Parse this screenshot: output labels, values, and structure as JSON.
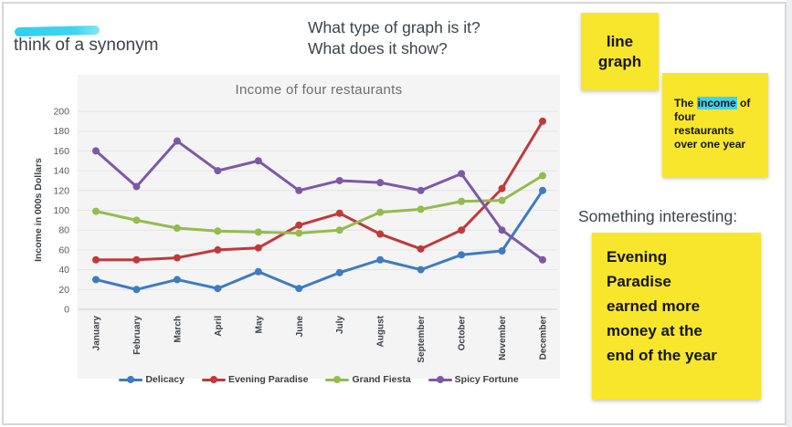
{
  "page": {
    "prompt_synonym": "think of a synonym",
    "question_line1": "What type of graph is it?",
    "question_line2": "What does it show?",
    "something_interesting": "Something interesting:"
  },
  "stickies": {
    "graph_type_answer": "line graph",
    "shows_answer": {
      "before": "The ",
      "highlight": "income",
      "after": " of four restaurants over one year"
    },
    "interesting_answer": "Evening Paradise earned more money at the end of the year"
  },
  "colors": {
    "sticky_yellow": "#F7E62B",
    "highlight_cyan": "#3ED4EF",
    "board_border": "#D7D7D7",
    "chart_panel": "#F4F4F5"
  },
  "chart_data": {
    "type": "line",
    "title": "Income of four restaurants",
    "ylabel": "Income in 000s Dollars",
    "xlabel": "",
    "ylim": [
      0,
      200
    ],
    "ytick_step": 20,
    "grid": true,
    "legend_position": "bottom",
    "categories": [
      "January",
      "February",
      "March",
      "April",
      "May",
      "June",
      "July",
      "August",
      "September",
      "October",
      "November",
      "December"
    ],
    "series": [
      {
        "name": "Delicacy",
        "color": "#3E7BBF",
        "values": [
          30,
          20,
          30,
          21,
          38,
          21,
          37,
          50,
          40,
          55,
          59,
          120
        ]
      },
      {
        "name": "Evening Paradise",
        "color": "#C0393B",
        "values": [
          50,
          50,
          52,
          60,
          62,
          85,
          97,
          76,
          61,
          80,
          122,
          190
        ]
      },
      {
        "name": "Grand Fiesta",
        "color": "#94BB4D",
        "values": [
          99,
          90,
          82,
          79,
          78,
          77,
          80,
          98,
          101,
          109,
          110,
          135
        ]
      },
      {
        "name": "Spicy Fortune",
        "color": "#7D59A5",
        "values": [
          160,
          124,
          170,
          140,
          150,
          120,
          130,
          128,
          120,
          137,
          80,
          50
        ]
      }
    ]
  }
}
